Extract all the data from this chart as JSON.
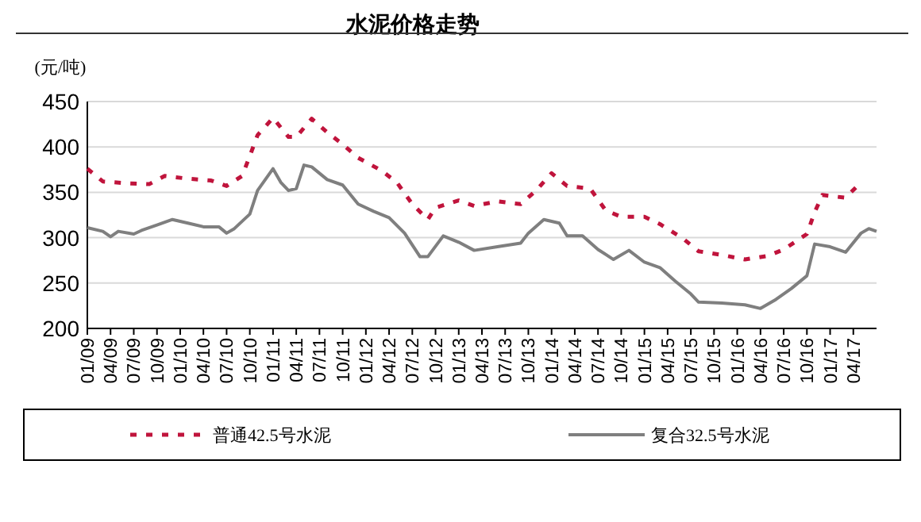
{
  "chart_data": {
    "type": "line",
    "title": "水泥价格走势",
    "ylabel": "(元/吨)",
    "xlim": [
      "2009-01",
      "2017-07"
    ],
    "ylim": [
      200,
      450
    ],
    "yticks": [
      200,
      250,
      300,
      350,
      400,
      450
    ],
    "xticks": [
      {
        "value": "2009-01",
        "label": "01/09"
      },
      {
        "value": "2009-04",
        "label": "04/09"
      },
      {
        "value": "2009-07",
        "label": "07/09"
      },
      {
        "value": "2009-10",
        "label": "10/09"
      },
      {
        "value": "2010-01",
        "label": "01/10"
      },
      {
        "value": "2010-04",
        "label": "04/10"
      },
      {
        "value": "2010-07",
        "label": "07/10"
      },
      {
        "value": "2010-10",
        "label": "10/10"
      },
      {
        "value": "2011-01",
        "label": "01/11"
      },
      {
        "value": "2011-04",
        "label": "04/11"
      },
      {
        "value": "2011-07",
        "label": "07/11"
      },
      {
        "value": "2011-10",
        "label": "10/11"
      },
      {
        "value": "2012-01",
        "label": "01/12"
      },
      {
        "value": "2012-04",
        "label": "04/12"
      },
      {
        "value": "2012-07",
        "label": "07/12"
      },
      {
        "value": "2012-10",
        "label": "10/12"
      },
      {
        "value": "2013-01",
        "label": "01/13"
      },
      {
        "value": "2013-04",
        "label": "04/13"
      },
      {
        "value": "2013-07",
        "label": "07/13"
      },
      {
        "value": "2013-10",
        "label": "10/13"
      },
      {
        "value": "2014-01",
        "label": "01/14"
      },
      {
        "value": "2014-04",
        "label": "04/14"
      },
      {
        "value": "2014-07",
        "label": "07/14"
      },
      {
        "value": "2014-10",
        "label": "10/14"
      },
      {
        "value": "2015-01",
        "label": "01/15"
      },
      {
        "value": "2015-04",
        "label": "04/15"
      },
      {
        "value": "2015-07",
        "label": "07/15"
      },
      {
        "value": "2015-10",
        "label": "10/15"
      },
      {
        "value": "2016-01",
        "label": "01/16"
      },
      {
        "value": "2016-04",
        "label": "04/16"
      },
      {
        "value": "2016-07",
        "label": "07/16"
      },
      {
        "value": "2016-10",
        "label": "10/16"
      },
      {
        "value": "2017-01",
        "label": "01/17"
      },
      {
        "value": "2017-04",
        "label": "04/17"
      }
    ],
    "grid": "y",
    "legend": "bottom",
    "series": [
      {
        "name": "普通42.5号水泥",
        "color": "#c0143c",
        "line_style": "dashed",
        "x": [
          "2009-01",
          "2009-03",
          "2009-06",
          "2009-09",
          "2009-11",
          "2010-02",
          "2010-05",
          "2010-07",
          "2010-09",
          "2010-10",
          "2010-11",
          "2011-01",
          "2011-03",
          "2011-04",
          "2011-06",
          "2011-08",
          "2011-10",
          "2011-12",
          "2012-03",
          "2012-05",
          "2012-07",
          "2012-09",
          "2012-10",
          "2013-01",
          "2013-03",
          "2013-06",
          "2013-09",
          "2013-11",
          "2014-01",
          "2014-03",
          "2014-06",
          "2014-08",
          "2014-10",
          "2015-01",
          "2015-03",
          "2015-06",
          "2015-08",
          "2015-11",
          "2016-02",
          "2016-05",
          "2016-07",
          "2016-10",
          "2016-11",
          "2016-12",
          "2017-03",
          "2017-05"
        ],
        "values": [
          376,
          362,
          360,
          359,
          368,
          365,
          363,
          357,
          368,
          390,
          413,
          432,
          411,
          411,
          431,
          416,
          403,
          388,
          374,
          361,
          337,
          320,
          333,
          341,
          335,
          340,
          337,
          352,
          371,
          357,
          354,
          330,
          323,
          323,
          315,
          299,
          285,
          281,
          276,
          280,
          287,
          304,
          328,
          347,
          344,
          361
        ]
      },
      {
        "name": "复合32.5号水泥",
        "color": "#7f7f7f",
        "line_style": "solid",
        "x": [
          "2009-01",
          "2009-03",
          "2009-04",
          "2009-05",
          "2009-07",
          "2009-08",
          "2009-10",
          "2009-12",
          "2010-02",
          "2010-04",
          "2010-06",
          "2010-07",
          "2010-08",
          "2010-10",
          "2010-11",
          "2011-01",
          "2011-02",
          "2011-03",
          "2011-04",
          "2011-05",
          "2011-06",
          "2011-08",
          "2011-10",
          "2011-12",
          "2012-02",
          "2012-04",
          "2012-06",
          "2012-08",
          "2012-09",
          "2012-11",
          "2013-01",
          "2013-03",
          "2013-06",
          "2013-09",
          "2013-10",
          "2013-12",
          "2014-02",
          "2014-03",
          "2014-05",
          "2014-07",
          "2014-09",
          "2014-11",
          "2015-01",
          "2015-03",
          "2015-05",
          "2015-07",
          "2015-08",
          "2015-11",
          "2016-02",
          "2016-04",
          "2016-06",
          "2016-08",
          "2016-10",
          "2016-11",
          "2017-01",
          "2017-03",
          "2017-05",
          "2017-06",
          "2017-07"
        ],
        "values": [
          311,
          307,
          301,
          307,
          304,
          308,
          314,
          320,
          316,
          312,
          312,
          305,
          310,
          326,
          352,
          376,
          361,
          352,
          354,
          380,
          378,
          364,
          358,
          337,
          329,
          322,
          305,
          279,
          279,
          302,
          295,
          286,
          290,
          294,
          305,
          320,
          316,
          302,
          302,
          287,
          276,
          286,
          273,
          267,
          252,
          238,
          229,
          228,
          226,
          222,
          232,
          244,
          258,
          293,
          290,
          284,
          305,
          310,
          307
        ]
      }
    ]
  }
}
